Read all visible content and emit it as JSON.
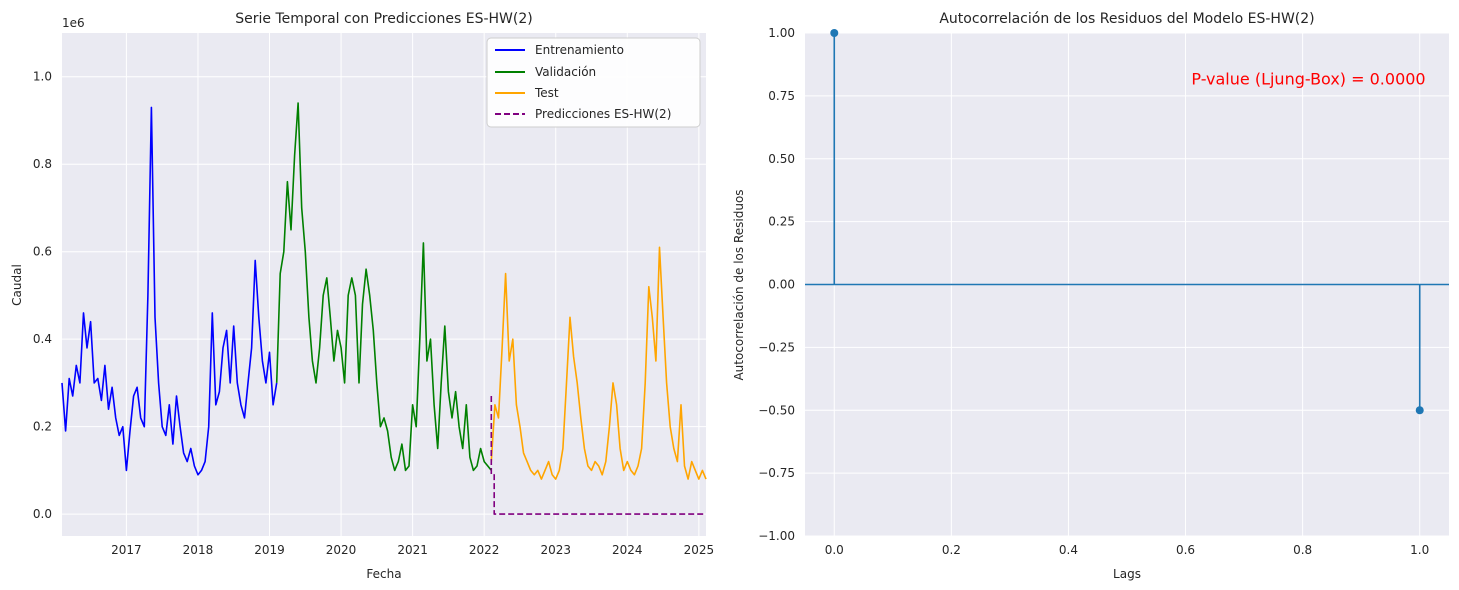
{
  "chart_data": [
    {
      "type": "line",
      "title": "Serie Temporal con Predicciones ES-HW(2)",
      "xlabel": "Fecha",
      "ylabel": "Caudal",
      "y_offset_text": "1e6",
      "xlim": [
        2016.1,
        2025.1
      ],
      "ylim": [
        -0.05,
        1.1
      ],
      "x_ticks": [
        2017,
        2018,
        2019,
        2020,
        2021,
        2022,
        2023,
        2024,
        2025
      ],
      "x_tick_labels": [
        "2017",
        "2018",
        "2019",
        "2020",
        "2021",
        "2022",
        "2023",
        "2024",
        "2025"
      ],
      "y_ticks": [
        0.0,
        0.2,
        0.4,
        0.6,
        0.8,
        1.0
      ],
      "y_tick_labels": [
        "0.0",
        "0.2",
        "0.4",
        "0.6",
        "0.8",
        "1.0"
      ],
      "grid": true,
      "legend_position": "top-right",
      "series": [
        {
          "name": "Entrenamiento",
          "color": "#0000ff",
          "style": "solid",
          "x": [
            2016.1,
            2016.15,
            2016.2,
            2016.25,
            2016.3,
            2016.35,
            2016.4,
            2016.45,
            2016.5,
            2016.55,
            2016.6,
            2016.65,
            2016.7,
            2016.75,
            2016.8,
            2016.85,
            2016.9,
            2016.95,
            2017.0,
            2017.05,
            2017.1,
            2017.15,
            2017.2,
            2017.25,
            2017.3,
            2017.35,
            2017.4,
            2017.45,
            2017.5,
            2017.55,
            2017.6,
            2017.65,
            2017.7,
            2017.75,
            2017.8,
            2017.85,
            2017.9,
            2017.95,
            2018.0,
            2018.05,
            2018.1,
            2018.15,
            2018.2,
            2018.25,
            2018.3,
            2018.35,
            2018.4,
            2018.45,
            2018.5,
            2018.55,
            2018.6,
            2018.65,
            2018.7,
            2018.75,
            2018.8,
            2018.85,
            2018.9,
            2018.95,
            2019.0,
            2019.05,
            2019.1
          ],
          "values": [
            0.3,
            0.19,
            0.31,
            0.27,
            0.34,
            0.3,
            0.46,
            0.38,
            0.44,
            0.3,
            0.31,
            0.26,
            0.34,
            0.24,
            0.29,
            0.22,
            0.18,
            0.2,
            0.1,
            0.19,
            0.27,
            0.29,
            0.22,
            0.2,
            0.5,
            0.93,
            0.45,
            0.3,
            0.2,
            0.18,
            0.25,
            0.16,
            0.27,
            0.2,
            0.14,
            0.12,
            0.15,
            0.11,
            0.09,
            0.1,
            0.12,
            0.2,
            0.46,
            0.25,
            0.28,
            0.38,
            0.42,
            0.3,
            0.43,
            0.3,
            0.25,
            0.22,
            0.3,
            0.38,
            0.58,
            0.45,
            0.35,
            0.3,
            0.37,
            0.25,
            0.3
          ]
        },
        {
          "name": "Validación",
          "color": "#008000",
          "style": "solid",
          "x": [
            2019.1,
            2019.15,
            2019.2,
            2019.25,
            2019.3,
            2019.35,
            2019.4,
            2019.45,
            2019.5,
            2019.55,
            2019.6,
            2019.65,
            2019.7,
            2019.75,
            2019.8,
            2019.85,
            2019.9,
            2019.95,
            2020.0,
            2020.05,
            2020.1,
            2020.15,
            2020.2,
            2020.25,
            2020.3,
            2020.35,
            2020.4,
            2020.45,
            2020.5,
            2020.55,
            2020.6,
            2020.65,
            2020.7,
            2020.75,
            2020.8,
            2020.85,
            2020.9,
            2020.95,
            2021.0,
            2021.05,
            2021.1,
            2021.15,
            2021.2,
            2021.25,
            2021.3,
            2021.35,
            2021.4,
            2021.45,
            2021.5,
            2021.55,
            2021.6,
            2021.65,
            2021.7,
            2021.75,
            2021.8,
            2021.85,
            2021.9,
            2021.95,
            2022.0,
            2022.05,
            2022.1
          ],
          "values": [
            0.3,
            0.55,
            0.6,
            0.76,
            0.65,
            0.82,
            0.94,
            0.7,
            0.6,
            0.45,
            0.35,
            0.3,
            0.38,
            0.5,
            0.54,
            0.45,
            0.35,
            0.42,
            0.38,
            0.3,
            0.5,
            0.54,
            0.5,
            0.3,
            0.48,
            0.56,
            0.5,
            0.42,
            0.3,
            0.2,
            0.22,
            0.19,
            0.13,
            0.1,
            0.12,
            0.16,
            0.1,
            0.11,
            0.25,
            0.2,
            0.4,
            0.62,
            0.35,
            0.4,
            0.25,
            0.15,
            0.3,
            0.43,
            0.28,
            0.22,
            0.28,
            0.2,
            0.15,
            0.25,
            0.13,
            0.1,
            0.11,
            0.15,
            0.12,
            0.11,
            0.1
          ]
        },
        {
          "name": "Test",
          "color": "#ffa500",
          "style": "solid",
          "x": [
            2022.1,
            2022.15,
            2022.2,
            2022.25,
            2022.3,
            2022.35,
            2022.4,
            2022.45,
            2022.5,
            2022.55,
            2022.6,
            2022.65,
            2022.7,
            2022.75,
            2022.8,
            2022.85,
            2022.9,
            2022.95,
            2023.0,
            2023.05,
            2023.1,
            2023.15,
            2023.2,
            2023.25,
            2023.3,
            2023.35,
            2023.4,
            2023.45,
            2023.5,
            2023.55,
            2023.6,
            2023.65,
            2023.7,
            2023.75,
            2023.8,
            2023.85,
            2023.9,
            2023.95,
            2024.0,
            2024.05,
            2024.1,
            2024.15,
            2024.2,
            2024.25,
            2024.3,
            2024.35,
            2024.4,
            2024.45,
            2024.5,
            2024.55,
            2024.6,
            2024.65,
            2024.7,
            2024.75,
            2024.8,
            2024.85,
            2024.9,
            2024.95,
            2025.0,
            2025.05,
            2025.1
          ],
          "values": [
            0.12,
            0.25,
            0.22,
            0.38,
            0.55,
            0.35,
            0.4,
            0.25,
            0.2,
            0.14,
            0.12,
            0.1,
            0.09,
            0.1,
            0.08,
            0.1,
            0.12,
            0.09,
            0.08,
            0.1,
            0.15,
            0.3,
            0.45,
            0.36,
            0.3,
            0.22,
            0.15,
            0.11,
            0.1,
            0.12,
            0.11,
            0.09,
            0.12,
            0.2,
            0.3,
            0.25,
            0.15,
            0.1,
            0.12,
            0.1,
            0.09,
            0.11,
            0.15,
            0.3,
            0.52,
            0.45,
            0.35,
            0.61,
            0.45,
            0.3,
            0.2,
            0.15,
            0.12,
            0.25,
            0.11,
            0.08,
            0.12,
            0.1,
            0.08,
            0.1,
            0.08
          ]
        },
        {
          "name": "Predicciones ES-HW(2)",
          "color": "#800080",
          "style": "dashed",
          "x": [
            2022.1,
            2022.1,
            2022.14,
            2022.14,
            2025.1
          ],
          "values": [
            0.27,
            0.09,
            0.09,
            0.0,
            0.0
          ]
        }
      ]
    },
    {
      "type": "stem",
      "title": "Autocorrelación de los Residuos del Modelo ES-HW(2)",
      "xlabel": "Lags",
      "ylabel": "Autocorrelación de los Residuos",
      "xlim": [
        -0.05,
        1.05
      ],
      "ylim": [
        -1.0,
        1.0
      ],
      "x_ticks": [
        0.0,
        0.2,
        0.4,
        0.6,
        0.8,
        1.0
      ],
      "x_tick_labels": [
        "0.0",
        "0.2",
        "0.4",
        "0.6",
        "0.8",
        "1.0"
      ],
      "y_ticks": [
        1.0,
        0.75,
        0.5,
        0.25,
        0.0,
        -0.25,
        -0.5,
        -0.75,
        -1.0
      ],
      "y_tick_labels": [
        "1.00",
        "0.75",
        "0.50",
        "0.25",
        "0.00",
        "−0.25",
        "−0.50",
        "−0.75",
        "−1.00"
      ],
      "grid": true,
      "color": "#1f77b4",
      "points": [
        {
          "x": 0.0,
          "y": 1.0
        },
        {
          "x": 1.0,
          "y": -0.5
        }
      ],
      "annotation": {
        "text": "P-value (Ljung-Box) = 0.0000",
        "color": "#ff0000",
        "x": 0.61,
        "y": 0.82
      }
    }
  ]
}
